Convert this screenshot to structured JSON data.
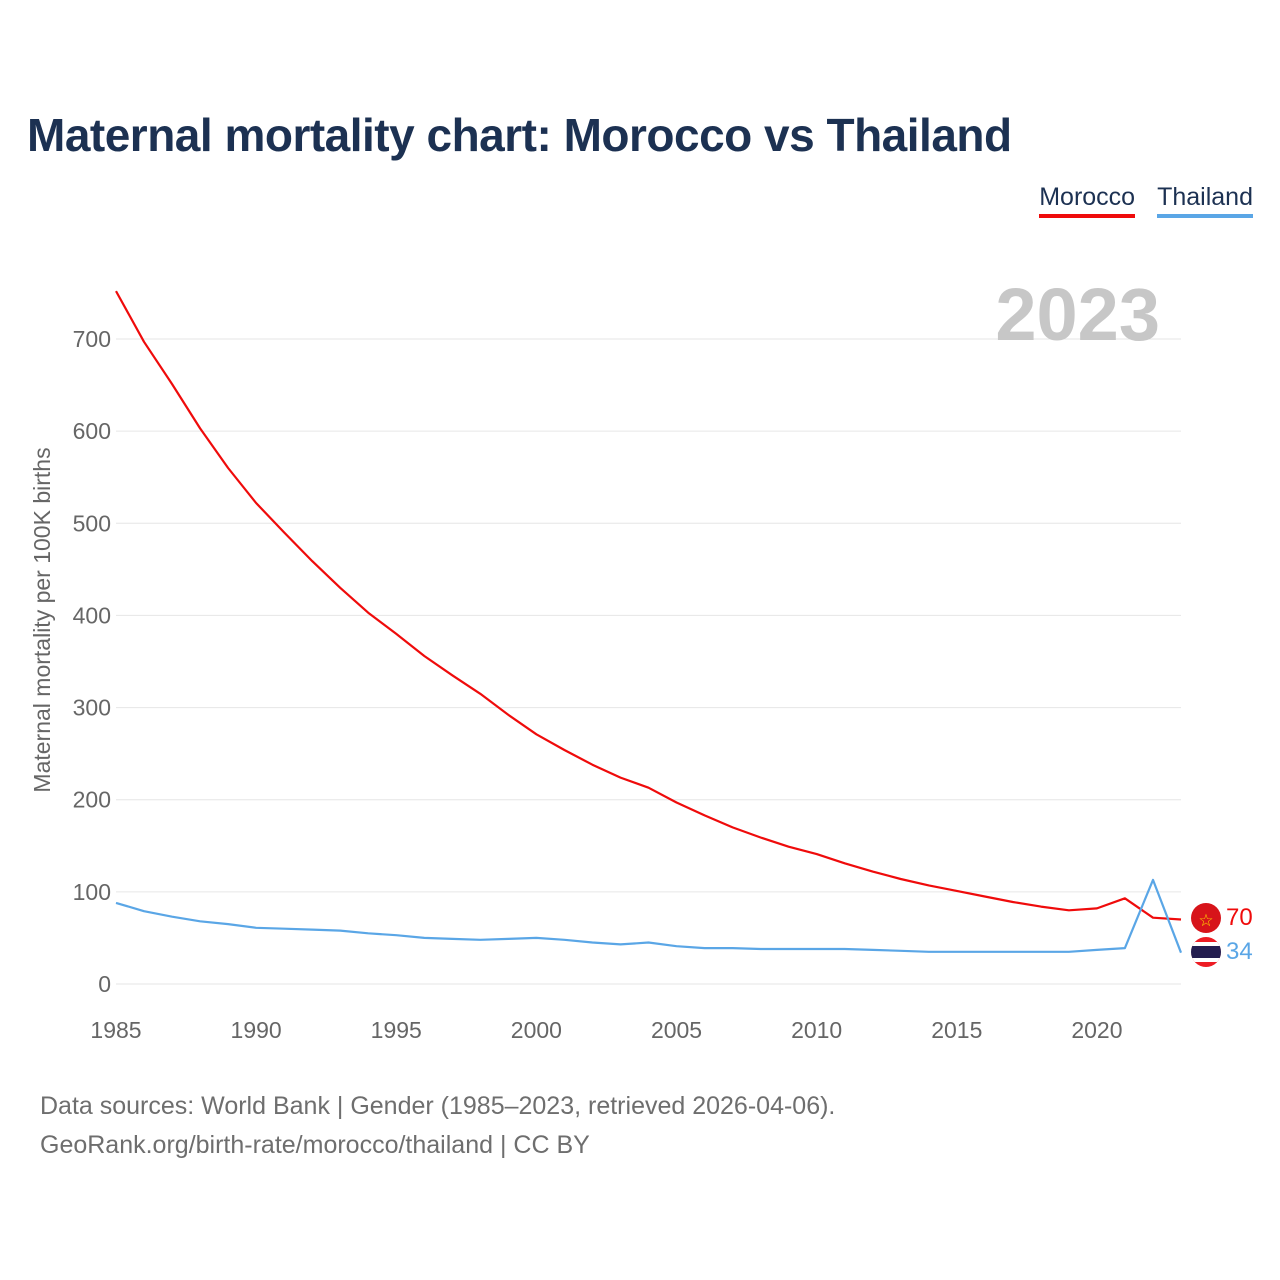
{
  "title": "Maternal mortality chart: Morocco vs Thailand",
  "legend": {
    "morocco": "Morocco",
    "thailand": "Thailand"
  },
  "year_label": "2023",
  "footer": {
    "line1": "Data sources: World Bank | Gender (1985–2023, retrieved 2026-04-06).",
    "line2": "GeoRank.org/birth-rate/morocco/thailand | CC BY"
  },
  "colors": {
    "morocco": "#ef0b0b",
    "thailand": "#5aa6e6",
    "grid": "#e6e6e6",
    "title": "#1c3152"
  },
  "end_values": {
    "morocco": "70",
    "thailand": "34"
  },
  "chart_data": {
    "type": "line",
    "title": "Maternal mortality chart: Morocco vs Thailand",
    "xlabel": "",
    "ylabel": "Maternal mortality per 100K births",
    "xlim": [
      1985,
      2023
    ],
    "ylim": [
      0,
      700
    ],
    "yticks": [
      0,
      100,
      200,
      300,
      400,
      500,
      600,
      700
    ],
    "xticks": [
      1985,
      1990,
      1995,
      2000,
      2005,
      2010,
      2015,
      2020
    ],
    "x": [
      1985,
      1986,
      1987,
      1988,
      1989,
      1990,
      1991,
      1992,
      1993,
      1994,
      1995,
      1996,
      1997,
      1998,
      1999,
      2000,
      2001,
      2002,
      2003,
      2004,
      2005,
      2006,
      2007,
      2008,
      2009,
      2010,
      2011,
      2012,
      2013,
      2014,
      2015,
      2016,
      2017,
      2018,
      2019,
      2020,
      2021,
      2022,
      2023
    ],
    "series": [
      {
        "name": "Morocco",
        "color": "#ef0b0b",
        "values": [
          752,
          697,
          651,
          603,
          560,
          522,
          490,
          459,
          430,
          403,
          380,
          356,
          335,
          315,
          292,
          271,
          254,
          238,
          224,
          213,
          197,
          183,
          170,
          159,
          149,
          141,
          131,
          122,
          114,
          107,
          101,
          95,
          89,
          84,
          80,
          82,
          93,
          72,
          70
        ]
      },
      {
        "name": "Thailand",
        "color": "#5aa6e6",
        "values": [
          88,
          79,
          73,
          68,
          65,
          61,
          60,
          59,
          58,
          55,
          53,
          50,
          49,
          48,
          49,
          50,
          48,
          45,
          43,
          45,
          41,
          39,
          39,
          38,
          38,
          38,
          38,
          37,
          36,
          35,
          35,
          35,
          35,
          35,
          35,
          37,
          39,
          113,
          34
        ]
      }
    ]
  }
}
